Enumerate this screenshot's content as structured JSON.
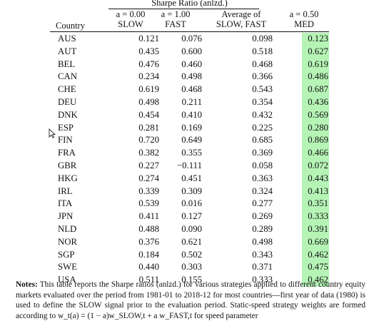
{
  "title": "Sharpe Ratio (anlzd.)",
  "headers": {
    "country": "Country",
    "slow_a": "a = 0.00",
    "slow_label": "SLOW",
    "fast_a": "a = 1.00",
    "fast_label": "FAST",
    "avg_line1": "Average of",
    "avg_line2": "SLOW, FAST",
    "med_a": "a = 0.50",
    "med_label": "MED"
  },
  "rows": [
    [
      "AUS",
      "0.121",
      "0.076",
      "0.098",
      "0.123"
    ],
    [
      "AUT",
      "0.435",
      "0.600",
      "0.518",
      "0.627"
    ],
    [
      "BEL",
      "0.476",
      "0.460",
      "0.468",
      "0.619"
    ],
    [
      "CAN",
      "0.234",
      "0.498",
      "0.366",
      "0.486"
    ],
    [
      "CHE",
      "0.619",
      "0.468",
      "0.543",
      "0.687"
    ],
    [
      "DEU",
      "0.498",
      "0.211",
      "0.354",
      "0.436"
    ],
    [
      "DNK",
      "0.454",
      "0.410",
      "0.432",
      "0.569"
    ],
    [
      "ESP",
      "0.281",
      "0.169",
      "0.225",
      "0.280"
    ],
    [
      "FIN",
      "0.720",
      "0.649",
      "0.685",
      "0.869"
    ],
    [
      "FRA",
      "0.382",
      "0.355",
      "0.369",
      "0.466"
    ],
    [
      "GBR",
      "0.227",
      "−0.111",
      "0.058",
      "0.072"
    ],
    [
      "HKG",
      "0.274",
      "0.451",
      "0.363",
      "0.443"
    ],
    [
      "IRL",
      "0.339",
      "0.309",
      "0.324",
      "0.413"
    ],
    [
      "ITA",
      "0.539",
      "0.016",
      "0.277",
      "0.351"
    ],
    [
      "JPN",
      "0.411",
      "0.127",
      "0.269",
      "0.333"
    ],
    [
      "NLD",
      "0.488",
      "0.090",
      "0.289",
      "0.391"
    ],
    [
      "NOR",
      "0.376",
      "0.621",
      "0.498",
      "0.669"
    ],
    [
      "SGP",
      "0.184",
      "0.502",
      "0.343",
      "0.462"
    ],
    [
      "SWE",
      "0.440",
      "0.303",
      "0.371",
      "0.475"
    ],
    [
      "USA",
      "0.511",
      "0.155",
      "0.333",
      "0.462"
    ]
  ],
  "highlight_color": "#b6f4b6",
  "notes": {
    "label": "Notes:",
    "text": "This table reports the Sharpe ratios (anlzd.) for various strategies applied to different country equity markets evaluated over the period from 1981-01 to 2018-12 for most countries—first year of data (1980) is used to define the SLOW signal prior to the evaluation period. Static-speed strategy weights are formed according to w_t(a) = (1 − a)w_SLOW,t + a w_FAST,t for speed parameter"
  },
  "cursor_icon": "mouse-pointer-icon"
}
